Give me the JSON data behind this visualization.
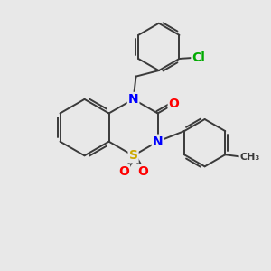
{
  "background_color": "#e8e8e8",
  "atom_colors": {
    "C": "#3a3a3a",
    "N": "#0000ff",
    "O": "#ff0000",
    "S": "#ccaa00",
    "Cl": "#00aa00"
  },
  "bond_color": "#3a3a3a",
  "bond_width": 1.4,
  "font_size_atom": 10
}
